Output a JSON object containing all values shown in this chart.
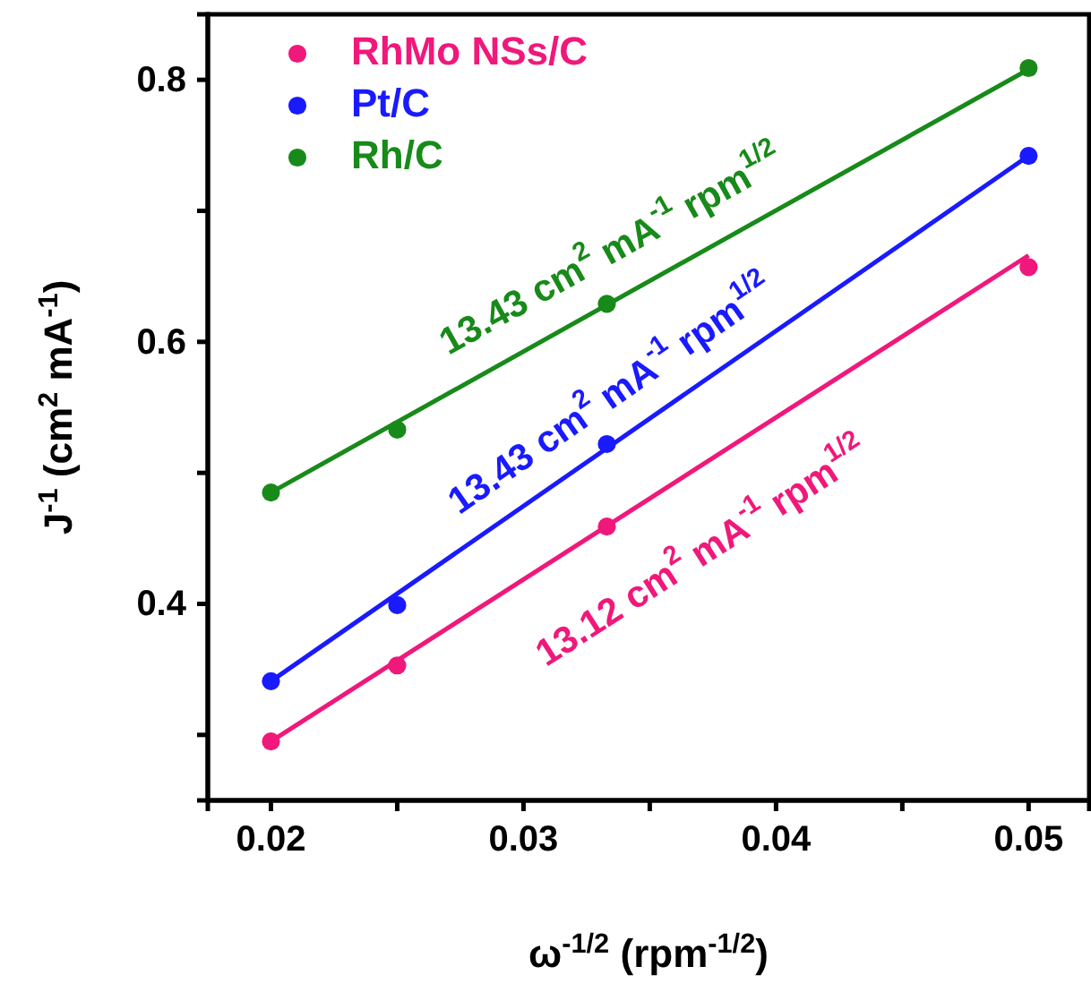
{
  "chart_data": {
    "type": "scatter",
    "xlabel": "ω$^{-1/2}$ (rpm$^{-1/2}$)",
    "ylabel": "J$^{-1}$ (cm$^{2}$ mA$^{-1}$)",
    "xlim": [
      0.0175,
      0.0524
    ],
    "ylim": [
      0.25,
      0.85
    ],
    "xticks": [
      0.02,
      {
        "value": 0.025,
        "label": null
      },
      0.03,
      {
        "value": 0.035,
        "label": null
      },
      0.04,
      {
        "value": 0.045,
        "label": null
      },
      0.05
    ],
    "yticks": [
      {
        "value": 0.3,
        "label": null
      },
      0.4,
      {
        "value": 0.5,
        "label": null
      },
      0.6,
      {
        "value": 0.7,
        "label": null
      },
      0.8
    ],
    "legend": "top left",
    "grid": false,
    "series": [
      {
        "name": "RhMo NSs/C",
        "marker": "circle",
        "color": "#f0187a",
        "x": [
          0.02,
          0.025,
          0.0333,
          0.05
        ],
        "values": [
          0.295,
          0.353,
          0.459,
          0.657
        ]
      },
      {
        "name": "Pt/C",
        "marker": "circle",
        "color": "#1a1aff",
        "x": [
          0.02,
          0.025,
          0.0333,
          0.05
        ],
        "values": [
          0.341,
          0.399,
          0.522,
          0.742
        ]
      },
      {
        "name": "Rh/C",
        "marker": "circle",
        "color": "#188a1a",
        "x": [
          0.02,
          0.025,
          0.0333,
          0.05
        ],
        "values": [
          0.485,
          0.533,
          0.629,
          0.809
        ]
      },
      {
        "type": "line",
        "color": "#188a1a",
        "x": [
          0.02,
          0.05
        ],
        "values": [
          0.485,
          0.808
        ]
      },
      {
        "type": "line",
        "color": "#1a1aff",
        "x": [
          0.02,
          0.05
        ],
        "values": [
          0.341,
          0.742
        ]
      },
      {
        "type": "line",
        "color": "#f0187a",
        "x": [
          0.02,
          0.05
        ],
        "values": [
          0.295,
          0.666
        ]
      }
    ],
    "annotations": [
      "13.43 cm$^{2}$ mA$^{-1}$ rpm$^{1/2}$",
      "13.43 cm$^{2}$ mA$^{-1}$ rpm$^{1/2}$",
      "13.12 cm$^{2}$ mA$^{-1}$ rpm$^{1/2}$"
    ]
  }
}
